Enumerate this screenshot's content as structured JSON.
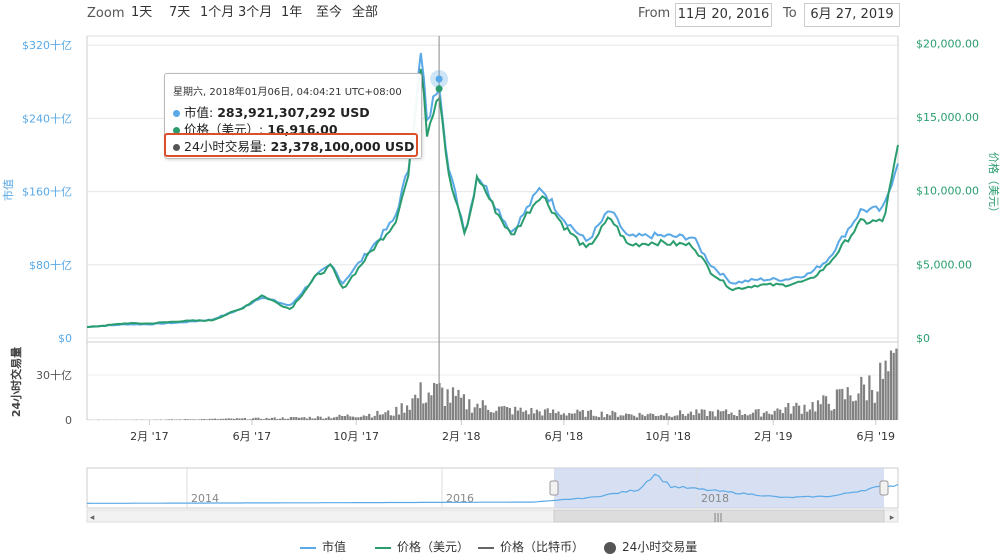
{
  "toolbar": {
    "zoom_label": "Zoom",
    "zoom_buttons": [
      "1天",
      "7天",
      "1个月",
      "3个月",
      "1年",
      "至今",
      "全部"
    ],
    "from_label": "From",
    "from_value": "11月 20, 2016",
    "to_label": "To",
    "to_value": "6月 27, 2019"
  },
  "tooltip": {
    "title": "星期六, 2018年01月06日, 04:04:21 UTC+08:00",
    "market_cap_label": "市值: ",
    "market_cap_value": "283,921,307,292 USD",
    "price_label": "价格（美元）: ",
    "price_value": "16,916.00",
    "volume_label": "24小时交易量: ",
    "volume_value": "23,378,100,000 USD"
  },
  "colors": {
    "market_cap": "#5aa9e6",
    "price_usd": "#2a9d6e",
    "price_btc": "#666666",
    "volume": "#555555",
    "highlight": "#d9502b",
    "navigator_fill": "#c9d6ee"
  },
  "chart_data": {
    "type": "line",
    "x_axis": {
      "ticks": [
        "2月 '17",
        "6月 '17",
        "10月 '17",
        "2月 '18",
        "6月 '18",
        "10月 '18",
        "2月 '19",
        "6月 '19"
      ]
    },
    "y_left": {
      "label": "市值",
      "ticks": [
        "$0",
        "$80十亿",
        "$160十亿",
        "$240十亿",
        "$320十亿"
      ],
      "range": [
        0,
        330
      ]
    },
    "y_right": {
      "label": "价格（美元）",
      "ticks": [
        "$0",
        "$5,000.00",
        "$10,000.00",
        "$15,000.00",
        "$20,000.00"
      ],
      "range": [
        0,
        20500
      ]
    },
    "volume_axis": {
      "label": "24小时交易量",
      "ticks": [
        "0",
        "30十亿"
      ]
    },
    "x_range": [
      "2016-11-20",
      "2019-06-27"
    ],
    "series": [
      {
        "name": "市值",
        "unit": "十亿美元",
        "points": [
          [
            "2016-11-20",
            12
          ],
          [
            "2017-01-05",
            15
          ],
          [
            "2017-02-01",
            15
          ],
          [
            "2017-03-10",
            17
          ],
          [
            "2017-04-15",
            20
          ],
          [
            "2017-05-20",
            32
          ],
          [
            "2017-06-12",
            45
          ],
          [
            "2017-07-16",
            35
          ],
          [
            "2017-08-15",
            68
          ],
          [
            "2017-09-02",
            80
          ],
          [
            "2017-09-15",
            60
          ],
          [
            "2017-10-20",
            100
          ],
          [
            "2017-11-15",
            130
          ],
          [
            "2017-12-01",
            185
          ],
          [
            "2017-12-17",
            320
          ],
          [
            "2017-12-22",
            230
          ],
          [
            "2018-01-06",
            283
          ],
          [
            "2018-01-17",
            185
          ],
          [
            "2018-02-06",
            115
          ],
          [
            "2018-02-20",
            180
          ],
          [
            "2018-03-10",
            150
          ],
          [
            "2018-04-01",
            115
          ],
          [
            "2018-05-05",
            165
          ],
          [
            "2018-06-01",
            130
          ],
          [
            "2018-06-28",
            105
          ],
          [
            "2018-07-25",
            140
          ],
          [
            "2018-08-15",
            110
          ],
          [
            "2018-09-15",
            112
          ],
          [
            "2018-10-30",
            110
          ],
          [
            "2018-11-20",
            80
          ],
          [
            "2018-12-15",
            60
          ],
          [
            "2019-01-15",
            64
          ],
          [
            "2019-02-15",
            64
          ],
          [
            "2019-03-15",
            70
          ],
          [
            "2019-04-05",
            85
          ],
          [
            "2019-05-15",
            140
          ],
          [
            "2019-06-10",
            140
          ],
          [
            "2019-06-27",
            195
          ]
        ]
      },
      {
        "name": "价格（美元）",
        "unit": "USD",
        "points": [
          [
            "2016-11-20",
            730
          ],
          [
            "2017-01-05",
            1000
          ],
          [
            "2017-02-01",
            980
          ],
          [
            "2017-03-10",
            1150
          ],
          [
            "2017-04-15",
            1200
          ],
          [
            "2017-05-20",
            2000
          ],
          [
            "2017-06-12",
            2900
          ],
          [
            "2017-07-16",
            1950
          ],
          [
            "2017-08-15",
            4200
          ],
          [
            "2017-09-02",
            4900
          ],
          [
            "2017-09-15",
            3300
          ],
          [
            "2017-10-20",
            6000
          ],
          [
            "2017-11-15",
            7800
          ],
          [
            "2017-12-01",
            11000
          ],
          [
            "2017-12-17",
            19500
          ],
          [
            "2017-12-22",
            13800
          ],
          [
            "2018-01-06",
            16916
          ],
          [
            "2018-01-17",
            11000
          ],
          [
            "2018-02-06",
            6900
          ],
          [
            "2018-02-20",
            11000
          ],
          [
            "2018-03-10",
            9000
          ],
          [
            "2018-04-01",
            6900
          ],
          [
            "2018-05-05",
            9800
          ],
          [
            "2018-06-01",
            7600
          ],
          [
            "2018-06-28",
            6000
          ],
          [
            "2018-07-25",
            8200
          ],
          [
            "2018-08-15",
            6300
          ],
          [
            "2018-09-15",
            6500
          ],
          [
            "2018-10-30",
            6300
          ],
          [
            "2018-11-20",
            4500
          ],
          [
            "2018-12-15",
            3300
          ],
          [
            "2019-01-15",
            3600
          ],
          [
            "2019-02-15",
            3600
          ],
          [
            "2019-03-15",
            3900
          ],
          [
            "2019-04-05",
            4900
          ],
          [
            "2019-05-15",
            7900
          ],
          [
            "2019-06-10",
            7900
          ],
          [
            "2019-06-27",
            12900
          ]
        ]
      },
      {
        "name": "24小时交易量",
        "unit": "十亿美元",
        "points": [
          [
            "2016-11-20",
            0.1
          ],
          [
            "2017-03-01",
            0.4
          ],
          [
            "2017-06-15",
            1.3
          ],
          [
            "2017-09-01",
            2.5
          ],
          [
            "2017-11-15",
            6
          ],
          [
            "2017-12-17",
            22
          ],
          [
            "2018-01-06",
            23.4
          ],
          [
            "2018-02-06",
            14
          ],
          [
            "2018-04-01",
            8
          ],
          [
            "2018-06-01",
            6
          ],
          [
            "2018-09-01",
            4.5
          ],
          [
            "2018-11-20",
            6
          ],
          [
            "2019-01-15",
            6
          ],
          [
            "2019-04-05",
            14
          ],
          [
            "2019-05-15",
            25
          ],
          [
            "2019-06-27",
            42
          ]
        ]
      }
    ],
    "crosshair_date": "2018-01-06",
    "grid": true
  },
  "navigator": {
    "year_labels": [
      "2014",
      "2016",
      "2018"
    ],
    "scrollbar_grip": "|||"
  },
  "legend": {
    "items": [
      "市值",
      "价格（美元）",
      "价格（比特币）",
      "24小时交易量"
    ]
  }
}
